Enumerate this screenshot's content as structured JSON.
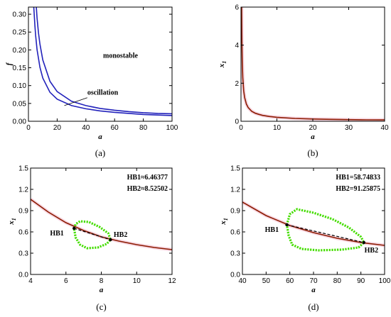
{
  "chart_data": [
    {
      "id": "a",
      "type": "line",
      "caption": "(a)",
      "xlabel": "a",
      "ylabel": "f",
      "xlim": [
        0,
        100
      ],
      "ylim": [
        0,
        0.32
      ],
      "xticks": [
        "0",
        "20",
        "40",
        "60",
        "80",
        "100"
      ],
      "yticks": [
        "0.00",
        "0.05",
        "0.10",
        "0.15",
        "0.20",
        "0.25",
        "0.30"
      ],
      "series": [
        {
          "color": "#2222bb",
          "x": [
            3.7,
            4.5,
            5,
            6,
            8,
            10,
            15,
            20,
            30,
            40,
            50,
            60,
            70,
            80,
            90,
            100
          ],
          "y": [
            0.32,
            0.268,
            0.241,
            0.201,
            0.151,
            0.121,
            0.081,
            0.062,
            0.044,
            0.035,
            0.029,
            0.025,
            0.022,
            0.019,
            0.0175,
            0.016
          ]
        },
        {
          "color": "#2222bb",
          "x": [
            5.5,
            6,
            7,
            8,
            10,
            15,
            20,
            30,
            40,
            50,
            60,
            70,
            80,
            90,
            100
          ],
          "y": [
            0.32,
            0.29,
            0.248,
            0.216,
            0.172,
            0.112,
            0.083,
            0.056,
            0.044,
            0.036,
            0.031,
            0.027,
            0.024,
            0.022,
            0.021
          ]
        }
      ],
      "annotations": [
        {
          "text": "monostable",
          "x": 52,
          "y": 0.178
        },
        {
          "text": "oscillation",
          "x": 41,
          "y": 0.075
        }
      ]
    },
    {
      "id": "b",
      "type": "line",
      "caption": "(b)",
      "xlabel": "a",
      "ylabel": "x1",
      "ylabel_main": "x",
      "ylabel_sub": "1",
      "xlim": [
        0,
        40
      ],
      "ylim": [
        0,
        6
      ],
      "xticks": [
        "0",
        "10",
        "20",
        "30",
        "40"
      ],
      "yticks": [
        "0",
        "2",
        "4",
        "6"
      ],
      "series": [
        {
          "color": "#8b1a00",
          "x": [
            0.17,
            0.25,
            0.35,
            0.5,
            0.75,
            1,
            1.5,
            2,
            3,
            4,
            5,
            6,
            8,
            10,
            15,
            20,
            25,
            30,
            35,
            40
          ],
          "y": [
            6.0,
            4.2,
            3.1,
            2.3,
            1.6,
            1.25,
            0.9,
            0.72,
            0.52,
            0.42,
            0.36,
            0.31,
            0.25,
            0.21,
            0.15,
            0.12,
            0.1,
            0.085,
            0.075,
            0.07
          ]
        }
      ]
    },
    {
      "id": "c",
      "type": "line",
      "caption": "(c)",
      "xlabel": "a",
      "ylabel": "x1",
      "ylabel_main": "x",
      "ylabel_sub": "1",
      "xlim": [
        4,
        12
      ],
      "ylim": [
        0,
        1.5
      ],
      "xticks": [
        "4",
        "6",
        "8",
        "10",
        "12"
      ],
      "yticks": [
        "0.0",
        "0.3",
        "0.6",
        "0.9",
        "1.2",
        "1.5"
      ],
      "series": [
        {
          "color": "#8b1a00",
          "x": [
            4,
            5,
            6,
            7,
            8,
            9,
            10,
            11,
            12
          ],
          "y": [
            1.06,
            0.88,
            0.73,
            0.62,
            0.53,
            0.47,
            0.42,
            0.38,
            0.35
          ]
        }
      ],
      "dashed": [
        [
          6.46,
          0.65
        ],
        [
          8.52,
          0.49
        ]
      ],
      "loop": {
        "color": "#44dd00",
        "points": [
          [
            6.46,
            0.65
          ],
          [
            6.55,
            0.71
          ],
          [
            6.8,
            0.75
          ],
          [
            7.3,
            0.74
          ],
          [
            7.9,
            0.67
          ],
          [
            8.4,
            0.58
          ],
          [
            8.52,
            0.49
          ],
          [
            8.3,
            0.43
          ],
          [
            7.8,
            0.38
          ],
          [
            7.2,
            0.37
          ],
          [
            6.8,
            0.42
          ],
          [
            6.55,
            0.52
          ]
        ]
      },
      "points": [
        {
          "label": "HB1",
          "x": 6.46,
          "y": 0.65,
          "tx": 5.1,
          "ty": 0.55
        },
        {
          "label": "HB2",
          "x": 8.52,
          "y": 0.49,
          "tx": 8.7,
          "ty": 0.53
        }
      ],
      "info_lines": [
        "HB1≈6.46377",
        "HB2≈8.52502"
      ]
    },
    {
      "id": "d",
      "type": "line",
      "caption": "(d)",
      "xlabel": "a",
      "ylabel": "x1",
      "ylabel_main": "x",
      "ylabel_sub": "1",
      "xlim": [
        40,
        100
      ],
      "ylim": [
        0,
        1.5
      ],
      "xticks": [
        "40",
        "50",
        "60",
        "70",
        "80",
        "90",
        "100"
      ],
      "yticks": [
        "0.0",
        "0.3",
        "0.6",
        "0.9",
        "1.2",
        "1.5"
      ],
      "series": [
        {
          "color": "#8b1a00",
          "x": [
            40,
            50,
            60,
            70,
            80,
            90,
            100
          ],
          "y": [
            1.02,
            0.83,
            0.69,
            0.59,
            0.51,
            0.45,
            0.41
          ]
        }
      ],
      "dashed": [
        [
          58.75,
          0.7
        ],
        [
          91.26,
          0.45
        ]
      ],
      "loop": {
        "color": "#44dd00",
        "points": [
          [
            58.75,
            0.7
          ],
          [
            60,
            0.85
          ],
          [
            63,
            0.92
          ],
          [
            70,
            0.87
          ],
          [
            78,
            0.78
          ],
          [
            85,
            0.66
          ],
          [
            90,
            0.53
          ],
          [
            91.26,
            0.45
          ],
          [
            89,
            0.38
          ],
          [
            82,
            0.35
          ],
          [
            72,
            0.34
          ],
          [
            65,
            0.36
          ],
          [
            61,
            0.42
          ],
          [
            59.5,
            0.55
          ]
        ]
      },
      "points": [
        {
          "label": "HB1",
          "x": 58.75,
          "y": 0.7,
          "tx": 49.5,
          "ty": 0.6
        },
        {
          "label": "HB2",
          "x": 91.26,
          "y": 0.45,
          "tx": 91.5,
          "ty": 0.31
        }
      ],
      "info_lines": [
        "HB1=58.74833",
        "HB2=91.25875"
      ]
    }
  ]
}
